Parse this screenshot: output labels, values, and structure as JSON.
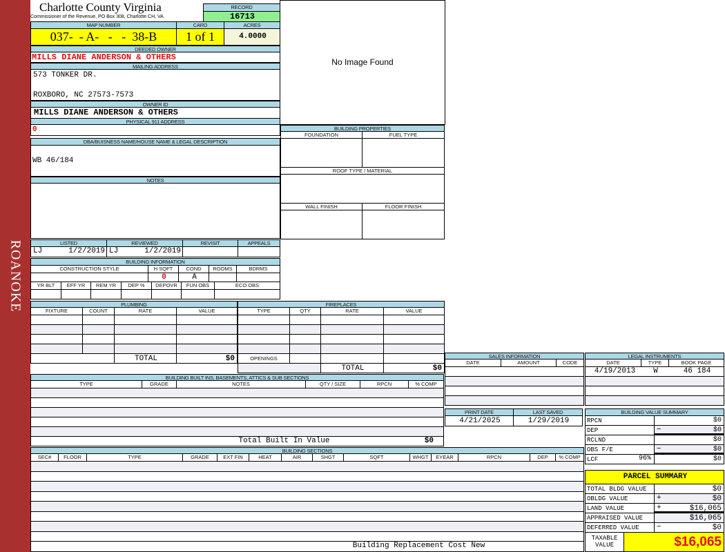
{
  "sidebar": {
    "label": "ROANOKE"
  },
  "header": {
    "title": "Charlotte County Virginia",
    "subtitle": "Commissioner of the Revenue, PO Box 308, Charlotte CH, VA",
    "record_label": "RECORD",
    "record": "16713"
  },
  "parcel": {
    "map_label": "MAP NUMBER",
    "map": "037-  - A-   -   -  38-B",
    "card_label": "CARD",
    "card": "1 of 1",
    "acres_label": "ACRES",
    "acres": "4.0000"
  },
  "owner": {
    "deeded_label": "DEEDED OWNER",
    "deeded": "MILLS DIANE ANDERSON & OTHERS",
    "mailing_label": "MAILING ADDRESS",
    "mailing_line1": "573 TONKER DR.",
    "mailing_line2": "ROXBORO, NC 27573-7573",
    "owner_id_label": "OWNER ID",
    "owner_id": "MILLS DIANE ANDERSON & OTHERS",
    "physical_label": "PHYSICAL 911 ADDRESS",
    "physical": "0"
  },
  "image": {
    "placeholder": "No Image Found"
  },
  "dba": {
    "label": "DBA/BUISNESS NAME/HOUSE NAME & LEGAL DESCRIPTION",
    "value": "WB 46/184"
  },
  "notes": {
    "label": "NOTES"
  },
  "building_properties": {
    "title": "BUILDING PROPERTIES",
    "foundation": "FOUNDATION",
    "fuel_type": "FUEL TYPE",
    "roof": "ROOF TYPE / MATERIAL",
    "wall": "WALL FINISH",
    "floor": "FLOOR FINISH"
  },
  "review": {
    "listed_label": "LISTED",
    "listed_by": "LJ",
    "listed_date": "1/2/2019",
    "reviewed_label": "REVIEWED",
    "reviewed_by": "LJ",
    "reviewed_date": "1/2/2019",
    "revisit_label": "REVISIT",
    "appeals_label": "APPEALS"
  },
  "building_info": {
    "title": "BUILDING INFORMATION",
    "columns1": [
      "CONSTRUCTION STYLE",
      "H SQFT",
      "COND",
      "ROOMS",
      "BDRMS"
    ],
    "hsqft": "0",
    "cond": "A",
    "columns2": [
      "YR BLT",
      "EFF YR",
      "REM YR",
      "DEP %",
      "DEPOVR",
      "FUN OBS",
      "ECO OBS"
    ]
  },
  "plumbing": {
    "title": "PLUMBING",
    "columns": [
      "FIXTURE",
      "COUNT",
      "RATE",
      "VALUE"
    ],
    "total_label": "TOTAL",
    "total": "$0"
  },
  "fireplaces": {
    "title": "FIREPLACES",
    "columns": [
      "TYPE",
      "QTY",
      "RATE",
      "VALUE"
    ],
    "openings_label": "OPENINGS",
    "total_label": "TOTAL",
    "total": "$0"
  },
  "built_ins": {
    "title": "BUILDING BUILT INS, BASEMENTS, ATTICS & SUB SECTIONS",
    "columns": [
      "TYPE",
      "GRADE",
      "NOTES",
      "QTY / SIZE",
      "RPCN",
      "% COMP"
    ],
    "total_label": "Total Built In Value",
    "total": "$0"
  },
  "sections": {
    "title": "BUILDING SECTIONS",
    "columns": [
      "SEC#",
      "FLOOR",
      "TYPE",
      "GRADE",
      "EXT FIN",
      "HEAT",
      "AIR",
      "SHGT",
      "SQFT",
      "WHGT",
      "EYEAR",
      "RPCN",
      "DEP",
      "% COMP"
    ],
    "footer": "Building Replacement Cost New"
  },
  "sales": {
    "title": "SALES INFORMATION",
    "columns": [
      "DATE",
      "AMOUNT",
      "CODE"
    ]
  },
  "legal": {
    "title": "LEGAL INSTRUMENTS",
    "columns": [
      "DATE",
      "TYPE",
      "BOOK PAGE"
    ],
    "rows": [
      {
        "date": "4/19/2013",
        "type": "W",
        "bookpage": "46 184"
      }
    ]
  },
  "dates": {
    "print_label": "PRINT DATE",
    "print_date": "4/21/2025",
    "saved_label": "LAST SAVED",
    "saved_date": "1/29/2019"
  },
  "value_summary": {
    "title": "BUILDING VALUE SUMMARY",
    "rows": [
      {
        "label": "RPCN",
        "pct": "",
        "sign": "",
        "value": "$0"
      },
      {
        "label": "DEP",
        "pct": "",
        "sign": "−",
        "value": "$0"
      },
      {
        "label": "RCLND",
        "pct": "",
        "sign": "",
        "value": "$0"
      },
      {
        "label": "OBS F/E",
        "pct": "",
        "sign": "−",
        "value": "$0"
      },
      {
        "label": "LCF",
        "pct": "96%",
        "sign": "",
        "value": "$0"
      }
    ]
  },
  "parcel_summary": {
    "title": "PARCEL SUMMARY",
    "rows": [
      {
        "label": "TOTAL BLDG VALUE",
        "sign": "",
        "value": "$0"
      },
      {
        "label": "OBLDG VALUE",
        "sign": "+",
        "value": "$0"
      },
      {
        "label": "LAND VALUE",
        "sign": "+",
        "value": "$16,065"
      },
      {
        "label": "APPRAISED VALUE",
        "sign": "",
        "value": "$16,065"
      },
      {
        "label": "DEFERRED VALUE",
        "sign": "−",
        "value": "$0"
      }
    ],
    "taxable_label": "TAXABLE VALUE",
    "taxable": "$16,065"
  },
  "colors": {
    "sidebar": "#a8302f",
    "header_bg": "#add8e6",
    "record_bg": "#90ee90",
    "highlight": "#ffff00",
    "owner_text": "#e01010"
  }
}
